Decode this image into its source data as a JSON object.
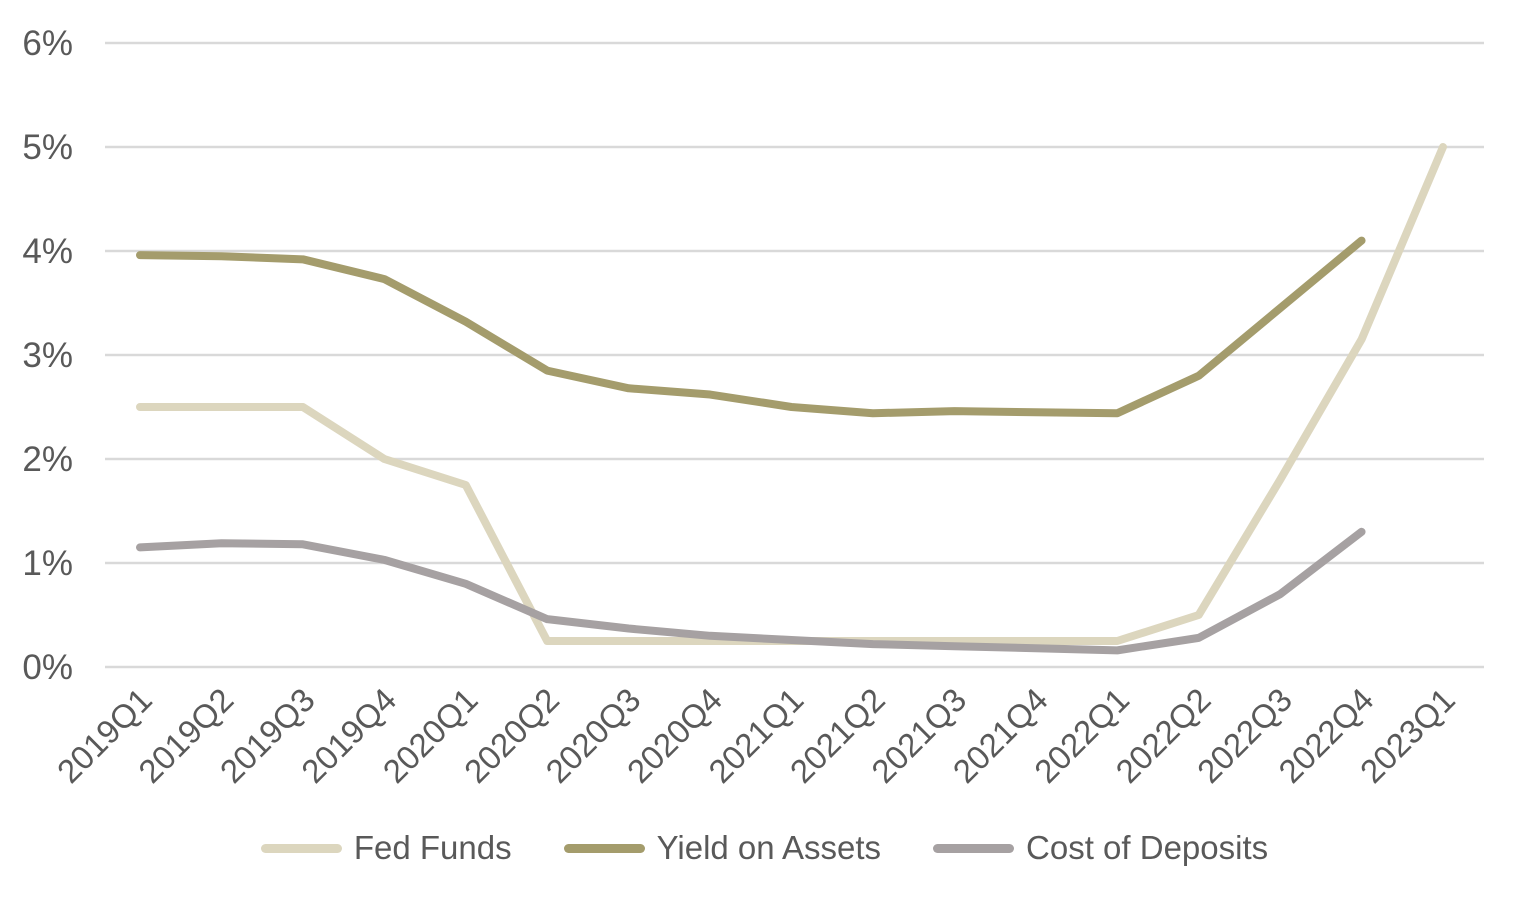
{
  "chart_data": {
    "type": "line",
    "title": "",
    "xlabel": "",
    "ylabel": "",
    "categories": [
      "2019Q1",
      "2019Q2",
      "2019Q3",
      "2019Q4",
      "2020Q1",
      "2020Q2",
      "2020Q3",
      "2020Q4",
      "2021Q1",
      "2021Q2",
      "2021Q3",
      "2021Q4",
      "2022Q1",
      "2022Q2",
      "2022Q3",
      "2022Q4",
      "2023Q1"
    ],
    "series": [
      {
        "name": "Fed Funds",
        "color": "#DCD6BE",
        "values": [
          2.5,
          2.5,
          2.5,
          2.0,
          1.75,
          0.25,
          0.25,
          0.25,
          0.25,
          0.25,
          0.25,
          0.25,
          0.25,
          0.5,
          1.8,
          3.15,
          5.0
        ]
      },
      {
        "name": "Yield on Assets",
        "color": "#A49C6C",
        "values": [
          3.96,
          3.95,
          3.92,
          3.73,
          3.32,
          2.85,
          2.68,
          2.62,
          2.5,
          2.44,
          2.46,
          2.45,
          2.44,
          2.8,
          3.45,
          4.1,
          null
        ]
      },
      {
        "name": "Cost of Deposits",
        "color": "#A6A1A2",
        "values": [
          1.15,
          1.19,
          1.18,
          1.03,
          0.8,
          0.46,
          0.37,
          0.3,
          0.26,
          0.22,
          0.2,
          0.18,
          0.16,
          0.28,
          0.7,
          1.3,
          null
        ]
      }
    ],
    "ylim": [
      0,
      6
    ],
    "ytick_labels": [
      "0%",
      "1%",
      "2%",
      "3%",
      "4%",
      "5%",
      "6%"
    ],
    "grid": true,
    "legend_position": "bottom"
  },
  "colors": {
    "axis_text": "#595959",
    "gridline": "#D9D9D9",
    "background": "#FFFFFF"
  }
}
